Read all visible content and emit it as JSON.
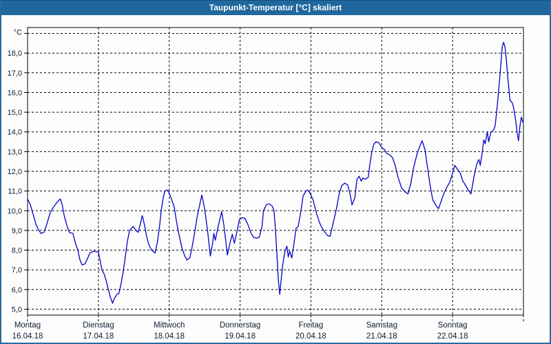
{
  "window": {
    "title": "Taupunkt-Temperatur [°C] skaliert",
    "bar_color": "#20679D",
    "border_color": "#2A6A9E",
    "background": "#FFFFFF"
  },
  "chart_data": {
    "type": "line",
    "title": "Taupunkt-Temperatur [°C] skaliert",
    "ylabel": "°C",
    "unit_label": "°C",
    "ylim": [
      4.7,
      19.3
    ],
    "xlim_days": [
      0,
      7
    ],
    "grid": "dashed",
    "legend_position": "none",
    "line_color": "#0000C8",
    "y_gridlines": [
      5,
      6,
      7,
      8,
      9,
      10,
      11,
      12,
      13,
      14,
      15,
      16,
      17,
      18,
      19
    ],
    "y_tick_labels": [
      {
        "value": 5,
        "label": "5,0"
      },
      {
        "value": 6,
        "label": "6,0"
      },
      {
        "value": 7,
        "label": "7,0"
      },
      {
        "value": 8,
        "label": "8,0"
      },
      {
        "value": 9,
        "label": "9,0"
      },
      {
        "value": 10,
        "label": "10,0"
      },
      {
        "value": 11,
        "label": "11,0"
      },
      {
        "value": 12,
        "label": "12,0"
      },
      {
        "value": 13,
        "label": "13,0"
      },
      {
        "value": 14,
        "label": "14,0"
      },
      {
        "value": 15,
        "label": "15,0"
      },
      {
        "value": 16,
        "label": "16,0"
      },
      {
        "value": 17,
        "label": "17,0"
      },
      {
        "value": 18,
        "label": "18,0"
      }
    ],
    "x_days": [
      {
        "name": "Montag",
        "date": "16.04.18",
        "day_index": 0
      },
      {
        "name": "Dienstag",
        "date": "17.04.18",
        "day_index": 1
      },
      {
        "name": "Mittwoch",
        "date": "18.04.18",
        "day_index": 2
      },
      {
        "name": "Donnerstag",
        "date": "19.04.18",
        "day_index": 3
      },
      {
        "name": "Freitag",
        "date": "20.04.18",
        "day_index": 4
      },
      {
        "name": "Samstag",
        "date": "21.04.18",
        "day_index": 5
      },
      {
        "name": "Sonntag",
        "date": "22.04.18",
        "day_index": 6
      }
    ],
    "series": [
      {
        "name": "Taupunkt-Temperatur",
        "color": "#0000C8",
        "points": [
          [
            0,
            10.6
          ],
          [
            0.04,
            10.3
          ],
          [
            0.08,
            9.8
          ],
          [
            0.12,
            9.3
          ],
          [
            0.16,
            9.0
          ],
          [
            0.19,
            8.85
          ],
          [
            0.23,
            8.9
          ],
          [
            0.27,
            9.3
          ],
          [
            0.32,
            9.9
          ],
          [
            0.37,
            10.2
          ],
          [
            0.41,
            10.4
          ],
          [
            0.46,
            10.6
          ],
          [
            0.49,
            10.3
          ],
          [
            0.52,
            9.7
          ],
          [
            0.56,
            9.2
          ],
          [
            0.59,
            8.9
          ],
          [
            0.64,
            8.85
          ],
          [
            0.68,
            8.3
          ],
          [
            0.71,
            8.0
          ],
          [
            0.74,
            7.5
          ],
          [
            0.77,
            7.25
          ],
          [
            0.81,
            7.3
          ],
          [
            0.85,
            7.6
          ],
          [
            0.88,
            7.85
          ],
          [
            0.93,
            7.95
          ],
          [
            1.0,
            7.9
          ],
          [
            1.05,
            7.0
          ],
          [
            1.08,
            6.8
          ],
          [
            1.11,
            6.45
          ],
          [
            1.14,
            6.0
          ],
          [
            1.17,
            5.6
          ],
          [
            1.2,
            5.3
          ],
          [
            1.22,
            5.5
          ],
          [
            1.26,
            5.75
          ],
          [
            1.29,
            5.8
          ],
          [
            1.32,
            6.3
          ],
          [
            1.35,
            6.9
          ],
          [
            1.38,
            7.65
          ],
          [
            1.41,
            8.45
          ],
          [
            1.44,
            9.0
          ],
          [
            1.49,
            9.2
          ],
          [
            1.53,
            9.0
          ],
          [
            1.56,
            8.9
          ],
          [
            1.59,
            9.3
          ],
          [
            1.62,
            9.75
          ],
          [
            1.65,
            9.3
          ],
          [
            1.68,
            8.7
          ],
          [
            1.71,
            8.3
          ],
          [
            1.75,
            8.0
          ],
          [
            1.8,
            7.85
          ],
          [
            1.83,
            8.35
          ],
          [
            1.86,
            9.1
          ],
          [
            1.89,
            10.1
          ],
          [
            1.92,
            10.75
          ],
          [
            1.94,
            11.0
          ],
          [
            1.97,
            11.05
          ],
          [
            2.0,
            10.9
          ],
          [
            2.04,
            10.5
          ],
          [
            2.07,
            10.2
          ],
          [
            2.1,
            9.5
          ],
          [
            2.14,
            8.75
          ],
          [
            2.18,
            8.1
          ],
          [
            2.22,
            7.7
          ],
          [
            2.25,
            7.5
          ],
          [
            2.29,
            7.6
          ],
          [
            2.32,
            8.1
          ],
          [
            2.36,
            8.9
          ],
          [
            2.39,
            9.6
          ],
          [
            2.43,
            10.3
          ],
          [
            2.46,
            10.8
          ],
          [
            2.5,
            10.1
          ],
          [
            2.54,
            9.0
          ],
          [
            2.58,
            7.7
          ],
          [
            2.61,
            8.3
          ],
          [
            2.63,
            8.85
          ],
          [
            2.65,
            8.5
          ],
          [
            2.69,
            9.2
          ],
          [
            2.74,
            9.95
          ],
          [
            2.77,
            9.3
          ],
          [
            2.8,
            8.4
          ],
          [
            2.82,
            7.75
          ],
          [
            2.86,
            8.4
          ],
          [
            2.89,
            8.8
          ],
          [
            2.92,
            8.35
          ],
          [
            2.96,
            9.0
          ],
          [
            2.99,
            9.55
          ],
          [
            3.03,
            9.65
          ],
          [
            3.07,
            9.6
          ],
          [
            3.11,
            9.3
          ],
          [
            3.15,
            8.9
          ],
          [
            3.19,
            8.65
          ],
          [
            3.23,
            8.6
          ],
          [
            3.27,
            8.65
          ],
          [
            3.31,
            9.2
          ],
          [
            3.33,
            10.0
          ],
          [
            3.37,
            10.3
          ],
          [
            3.41,
            10.35
          ],
          [
            3.45,
            10.25
          ],
          [
            3.48,
            10.0
          ],
          [
            3.5,
            9.0
          ],
          [
            3.52,
            7.75
          ],
          [
            3.54,
            6.5
          ],
          [
            3.56,
            5.75
          ],
          [
            3.58,
            6.5
          ],
          [
            3.6,
            7.2
          ],
          [
            3.63,
            7.9
          ],
          [
            3.66,
            8.2
          ],
          [
            3.68,
            7.65
          ],
          [
            3.7,
            7.95
          ],
          [
            3.73,
            7.6
          ],
          [
            3.76,
            8.3
          ],
          [
            3.79,
            9.1
          ],
          [
            3.82,
            9.2
          ],
          [
            3.85,
            9.8
          ],
          [
            3.89,
            10.75
          ],
          [
            3.93,
            11.0
          ],
          [
            3.96,
            11.05
          ],
          [
            4.0,
            10.8
          ],
          [
            4.03,
            10.55
          ],
          [
            4.08,
            9.85
          ],
          [
            4.12,
            9.4
          ],
          [
            4.16,
            9.1
          ],
          [
            4.2,
            8.9
          ],
          [
            4.23,
            8.75
          ],
          [
            4.27,
            8.7
          ],
          [
            4.31,
            9.3
          ],
          [
            4.36,
            10.1
          ],
          [
            4.4,
            10.9
          ],
          [
            4.44,
            11.3
          ],
          [
            4.48,
            11.4
          ],
          [
            4.52,
            11.3
          ],
          [
            4.55,
            10.9
          ],
          [
            4.58,
            10.3
          ],
          [
            4.62,
            10.65
          ],
          [
            4.65,
            11.6
          ],
          [
            4.68,
            11.75
          ],
          [
            4.71,
            11.5
          ],
          [
            4.73,
            11.65
          ],
          [
            4.77,
            11.6
          ],
          [
            4.81,
            11.7
          ],
          [
            4.83,
            12.3
          ],
          [
            4.86,
            13.0
          ],
          [
            4.89,
            13.4
          ],
          [
            4.92,
            13.5
          ],
          [
            4.96,
            13.45
          ],
          [
            5.0,
            13.2
          ],
          [
            5.04,
            13.1
          ],
          [
            5.07,
            12.9
          ],
          [
            5.11,
            12.85
          ],
          [
            5.15,
            12.7
          ],
          [
            5.19,
            12.3
          ],
          [
            5.23,
            11.7
          ],
          [
            5.28,
            11.15
          ],
          [
            5.33,
            10.95
          ],
          [
            5.37,
            10.85
          ],
          [
            5.41,
            11.4
          ],
          [
            5.45,
            12.2
          ],
          [
            5.5,
            12.9
          ],
          [
            5.54,
            13.3
          ],
          [
            5.57,
            13.55
          ],
          [
            5.61,
            13.1
          ],
          [
            5.64,
            12.35
          ],
          [
            5.68,
            11.35
          ],
          [
            5.72,
            10.55
          ],
          [
            5.76,
            10.3
          ],
          [
            5.8,
            10.1
          ],
          [
            5.84,
            10.5
          ],
          [
            5.88,
            10.9
          ],
          [
            5.92,
            11.2
          ],
          [
            5.96,
            11.45
          ],
          [
            6.0,
            11.9
          ],
          [
            6.03,
            12.3
          ],
          [
            6.07,
            12.1
          ],
          [
            6.11,
            11.9
          ],
          [
            6.14,
            11.55
          ],
          [
            6.18,
            11.3
          ],
          [
            6.22,
            11.05
          ],
          [
            6.26,
            10.85
          ],
          [
            6.3,
            11.7
          ],
          [
            6.34,
            12.35
          ],
          [
            6.37,
            12.6
          ],
          [
            6.39,
            12.3
          ],
          [
            6.42,
            13.0
          ],
          [
            6.44,
            13.6
          ],
          [
            6.46,
            13.4
          ],
          [
            6.49,
            14.0
          ],
          [
            6.51,
            13.5
          ],
          [
            6.54,
            14.0
          ],
          [
            6.57,
            14.05
          ],
          [
            6.6,
            14.3
          ],
          [
            6.63,
            15.3
          ],
          [
            6.66,
            16.5
          ],
          [
            6.68,
            17.4
          ],
          [
            6.7,
            18.3
          ],
          [
            6.72,
            18.55
          ],
          [
            6.74,
            18.3
          ],
          [
            6.76,
            17.6
          ],
          [
            6.78,
            16.7
          ],
          [
            6.8,
            16.0
          ],
          [
            6.81,
            15.6
          ],
          [
            6.84,
            15.5
          ],
          [
            6.86,
            15.25
          ],
          [
            6.89,
            14.6
          ],
          [
            6.91,
            14.0
          ],
          [
            6.93,
            13.55
          ],
          [
            6.95,
            14.3
          ],
          [
            6.97,
            14.75
          ],
          [
            6.99,
            14.5
          ]
        ]
      }
    ]
  }
}
